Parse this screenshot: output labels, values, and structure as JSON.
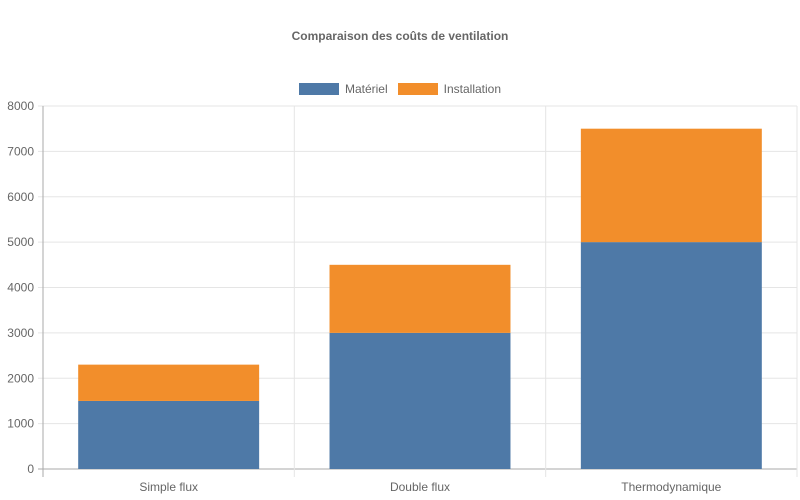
{
  "chart_data": {
    "type": "bar",
    "stacked": true,
    "title": "Comparaison des coûts de ventilation",
    "categories": [
      "Simple flux",
      "Double flux",
      "Thermodynamique"
    ],
    "series": [
      {
        "name": "Matériel",
        "values": [
          1500,
          3000,
          5000
        ],
        "color": "#4e79a7"
      },
      {
        "name": "Installation",
        "values": [
          800,
          1500,
          2500
        ],
        "color": "#f28e2b"
      }
    ],
    "ylim": [
      0,
      8000
    ],
    "yticks": [
      0,
      1000,
      2000,
      3000,
      4000,
      5000,
      6000,
      7000,
      8000
    ],
    "grid": true,
    "legend": "top"
  }
}
